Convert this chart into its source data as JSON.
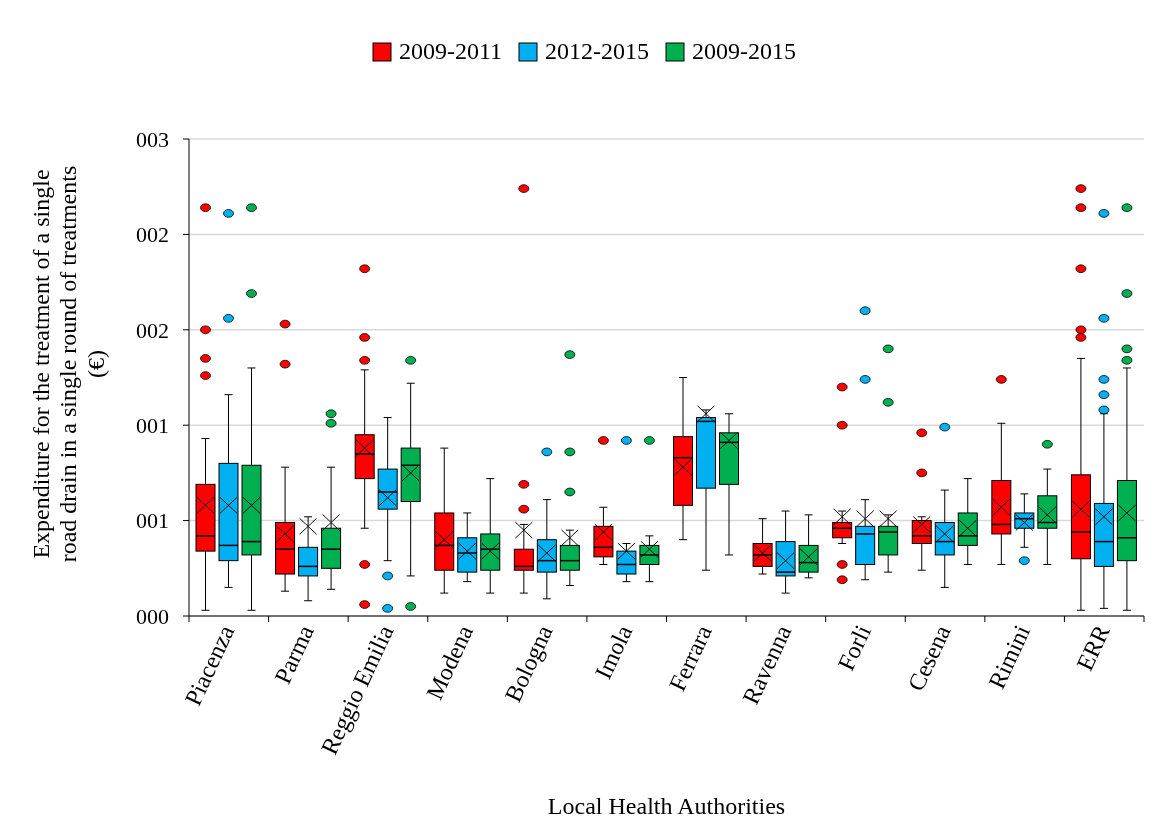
{
  "chart_data": {
    "type": "box",
    "xlabel": "Local Health Authorities",
    "ylabel": "Expenditure for the treatment of a single road drain in a single round of treatments (€)",
    "categories": [
      "Piacenza",
      "Parma",
      "Reggio Emilia",
      "Modena",
      "Bologna",
      "Imola",
      "Ferrara",
      "Ravenna",
      "Forli",
      "Cesena",
      "Rimini",
      "ERR"
    ],
    "ylim": [
      0,
      2.5
    ],
    "yticks": [
      {
        "value": 0,
        "label": "000"
      },
      {
        "value": 0.5,
        "label": "001"
      },
      {
        "value": 1,
        "label": "001"
      },
      {
        "value": 1.5,
        "label": "002"
      },
      {
        "value": 2,
        "label": "002"
      },
      {
        "value": 2.5,
        "label": "003"
      }
    ],
    "grid": "y",
    "legend": "top",
    "series": [
      {
        "name": "2009-2011",
        "color": "#ff0000",
        "boxes": [
          {
            "low": 0.03,
            "q1": 0.34,
            "median": 0.42,
            "q3": 0.69,
            "high": 0.93,
            "mean": 0.58,
            "outliers": [
              2.14,
              1.5,
              1.35,
              1.26
            ]
          },
          {
            "low": 0.13,
            "q1": 0.22,
            "median": 0.35,
            "q3": 0.49,
            "high": 0.78,
            "mean": 0.43,
            "outliers": [
              1.53,
              1.32
            ]
          },
          {
            "low": 0.46,
            "q1": 0.72,
            "median": 0.85,
            "q3": 0.95,
            "high": 1.29,
            "mean": 0.88,
            "outliers": [
              1.82,
              1.46,
              1.34,
              0.27,
              0.06
            ]
          },
          {
            "low": 0.12,
            "q1": 0.24,
            "median": 0.37,
            "q3": 0.54,
            "high": 0.88,
            "mean": 0.4
          },
          {
            "low": 0.12,
            "q1": 0.24,
            "median": 0.26,
            "q3": 0.35,
            "high": 0.48,
            "mean": 0.45,
            "outliers": [
              2.24,
              0.69,
              0.56
            ]
          },
          {
            "low": 0.27,
            "q1": 0.31,
            "median": 0.36,
            "q3": 0.47,
            "high": 0.57,
            "mean": 0.44,
            "outliers": [
              0.92
            ]
          },
          {
            "low": 0.4,
            "q1": 0.58,
            "median": 0.83,
            "q3": 0.94,
            "high": 1.25,
            "mean": 0.78
          },
          {
            "low": 0.22,
            "q1": 0.26,
            "median": 0.32,
            "q3": 0.38,
            "high": 0.51,
            "mean": 0.33
          },
          {
            "low": 0.38,
            "q1": 0.41,
            "median": 0.46,
            "q3": 0.49,
            "high": 0.55,
            "mean": 0.52,
            "outliers": [
              1.2,
              1.0,
              0.27,
              0.19
            ]
          },
          {
            "low": 0.24,
            "q1": 0.38,
            "median": 0.42,
            "q3": 0.5,
            "high": 0.52,
            "mean": 0.48,
            "outliers": [
              0.96,
              0.75
            ]
          },
          {
            "low": 0.27,
            "q1": 0.43,
            "median": 0.48,
            "q3": 0.71,
            "high": 1.01,
            "mean": 0.57,
            "outliers": [
              1.24
            ]
          },
          {
            "low": 0.03,
            "q1": 0.3,
            "median": 0.44,
            "q3": 0.74,
            "high": 1.35,
            "mean": 0.56,
            "outliers": [
              2.24,
              2.14,
              1.82,
              1.5,
              1.46
            ]
          }
        ]
      },
      {
        "name": "2012-2015",
        "color": "#00b0f0",
        "boxes": [
          {
            "low": 0.15,
            "q1": 0.29,
            "median": 0.37,
            "q3": 0.8,
            "high": 1.16,
            "mean": 0.58,
            "outliers": [
              2.11,
              1.56
            ]
          },
          {
            "low": 0.08,
            "q1": 0.21,
            "median": 0.26,
            "q3": 0.36,
            "high": 0.52,
            "mean": 0.47
          },
          {
            "low": 0.29,
            "q1": 0.56,
            "median": 0.65,
            "q3": 0.77,
            "high": 1.04,
            "mean": 0.62,
            "outliers": [
              0.21,
              0.04
            ]
          },
          {
            "low": 0.18,
            "q1": 0.23,
            "median": 0.33,
            "q3": 0.41,
            "high": 0.54,
            "mean": 0.34
          },
          {
            "low": 0.09,
            "q1": 0.23,
            "median": 0.29,
            "q3": 0.4,
            "high": 0.61,
            "mean": 0.33,
            "outliers": [
              0.86
            ]
          },
          {
            "low": 0.18,
            "q1": 0.22,
            "median": 0.27,
            "q3": 0.34,
            "high": 0.38,
            "mean": 0.34,
            "outliers": [
              0.92
            ]
          },
          {
            "low": 0.24,
            "q1": 0.67,
            "median": 1.02,
            "q3": 1.04,
            "high": 1.08,
            "mean": 1.06
          },
          {
            "low": 0.12,
            "q1": 0.21,
            "median": 0.23,
            "q3": 0.39,
            "high": 0.55,
            "mean": 0.29
          },
          {
            "low": 0.19,
            "q1": 0.27,
            "median": 0.43,
            "q3": 0.47,
            "high": 0.61,
            "mean": 0.51,
            "outliers": [
              1.6,
              1.24
            ]
          },
          {
            "low": 0.15,
            "q1": 0.32,
            "median": 0.39,
            "q3": 0.49,
            "high": 0.66,
            "mean": 0.43,
            "outliers": [
              0.99
            ]
          },
          {
            "low": 0.36,
            "q1": 0.46,
            "median": 0.51,
            "q3": 0.54,
            "high": 0.64,
            "mean": 0.49,
            "outliers": [
              0.29
            ]
          },
          {
            "low": 0.04,
            "q1": 0.26,
            "median": 0.39,
            "q3": 0.59,
            "high": 1.06,
            "mean": 0.52,
            "outliers": [
              2.11,
              1.56,
              1.24,
              1.16,
              1.08
            ]
          }
        ]
      },
      {
        "name": "2009-2015",
        "color": "#00b050",
        "boxes": [
          {
            "low": 0.03,
            "q1": 0.32,
            "median": 0.39,
            "q3": 0.79,
            "high": 1.3,
            "mean": 0.58,
            "outliers": [
              2.14,
              1.69
            ]
          },
          {
            "low": 0.14,
            "q1": 0.25,
            "median": 0.35,
            "q3": 0.46,
            "high": 0.78,
            "mean": 0.49,
            "outliers": [
              1.06,
              1.01
            ]
          },
          {
            "low": 0.21,
            "q1": 0.6,
            "median": 0.79,
            "q3": 0.88,
            "high": 1.22,
            "mean": 0.75,
            "outliers": [
              1.34,
              0.05
            ]
          },
          {
            "low": 0.12,
            "q1": 0.24,
            "median": 0.35,
            "q3": 0.43,
            "high": 0.72,
            "mean": 0.34
          },
          {
            "low": 0.16,
            "q1": 0.24,
            "median": 0.29,
            "q3": 0.37,
            "high": 0.45,
            "mean": 0.41,
            "outliers": [
              1.37,
              0.86,
              0.65
            ]
          },
          {
            "low": 0.18,
            "q1": 0.27,
            "median": 0.32,
            "q3": 0.37,
            "high": 0.42,
            "mean": 0.35,
            "outliers": [
              0.92
            ]
          },
          {
            "low": 0.32,
            "q1": 0.69,
            "median": 0.91,
            "q3": 0.96,
            "high": 1.06,
            "mean": 0.92
          },
          {
            "low": 0.2,
            "q1": 0.23,
            "median": 0.28,
            "q3": 0.37,
            "high": 0.53,
            "mean": 0.31
          },
          {
            "low": 0.23,
            "q1": 0.32,
            "median": 0.44,
            "q3": 0.47,
            "high": 0.53,
            "mean": 0.51,
            "outliers": [
              1.4,
              1.12
            ]
          },
          {
            "low": 0.27,
            "q1": 0.37,
            "median": 0.42,
            "q3": 0.54,
            "high": 0.72,
            "mean": 0.46
          },
          {
            "low": 0.27,
            "q1": 0.46,
            "median": 0.49,
            "q3": 0.63,
            "high": 0.77,
            "mean": 0.53,
            "outliers": [
              0.9
            ]
          },
          {
            "low": 0.03,
            "q1": 0.29,
            "median": 0.41,
            "q3": 0.71,
            "high": 1.3,
            "mean": 0.54,
            "outliers": [
              2.14,
              1.69,
              1.4,
              1.34
            ]
          }
        ]
      }
    ]
  }
}
